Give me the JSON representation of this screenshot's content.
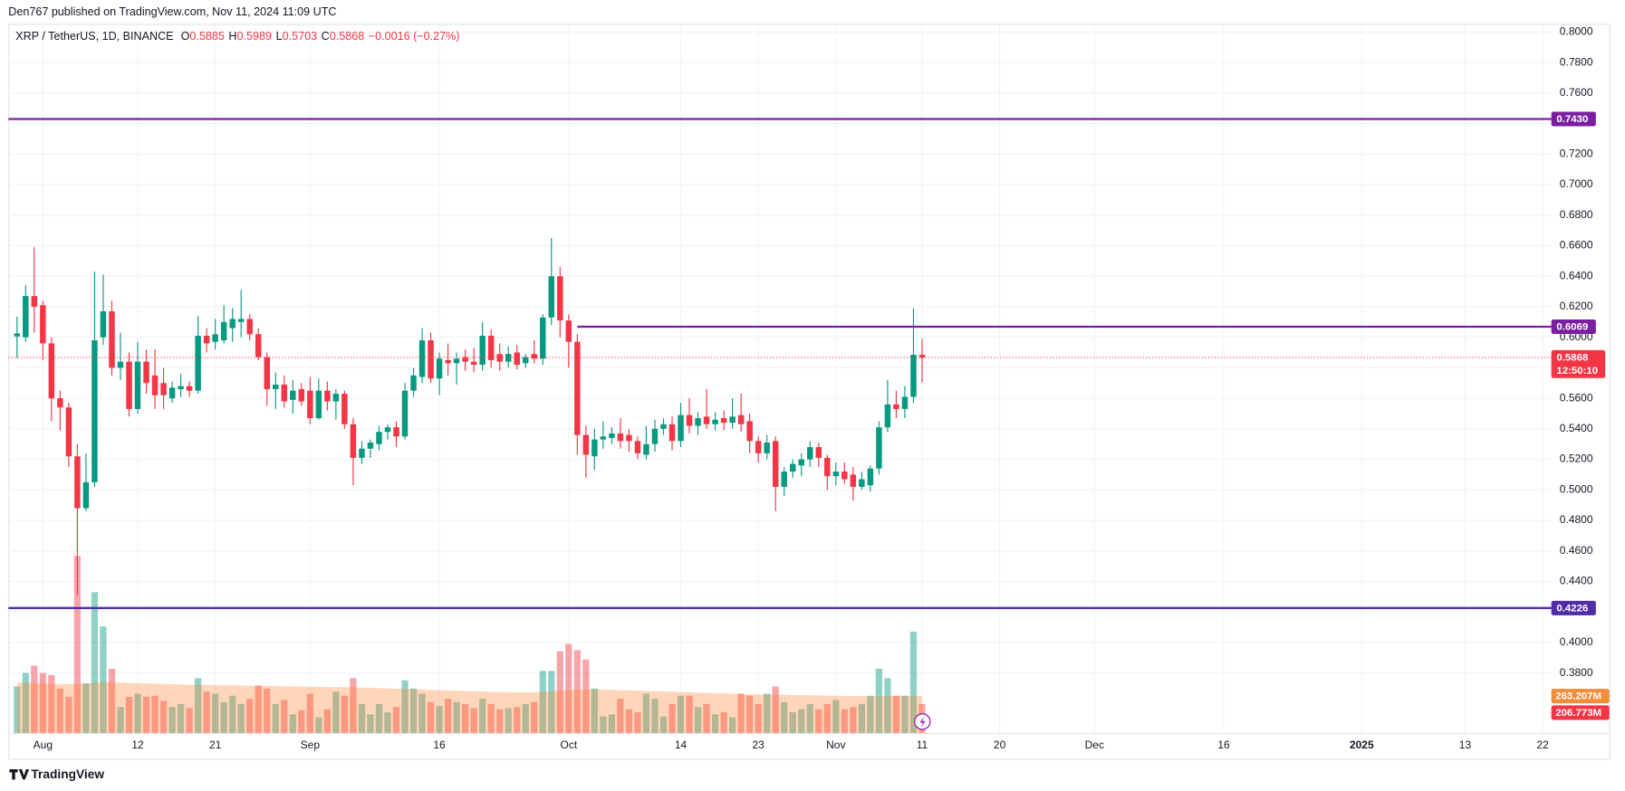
{
  "published": "Den767 published on TradingView.com, Nov 11, 2024 11:09 UTC",
  "footer": "TradingView",
  "chart_data": {
    "type": "candlestick",
    "title": "XRP / TetherUS, 1D, BINANCE",
    "ohlc_labels": [
      "O",
      "H",
      "L",
      "C"
    ],
    "change": "−0.0016 (−0.27%)",
    "countdown": "12:50:10",
    "up_color": "#089981",
    "down_color": "#f23645",
    "volume_ma_color": "#ff7f27",
    "x": [
      "2024-07-29",
      "2024-07-30",
      "2024-07-31",
      "2024-08-01",
      "2024-08-02",
      "2024-08-03",
      "2024-08-04",
      "2024-08-05",
      "2024-08-06",
      "2024-08-07",
      "2024-08-08",
      "2024-08-09",
      "2024-08-10",
      "2024-08-11",
      "2024-08-12",
      "2024-08-13",
      "2024-08-14",
      "2024-08-15",
      "2024-08-16",
      "2024-08-17",
      "2024-08-18",
      "2024-08-19",
      "2024-08-20",
      "2024-08-21",
      "2024-08-22",
      "2024-08-23",
      "2024-08-24",
      "2024-08-25",
      "2024-08-26",
      "2024-08-27",
      "2024-08-28",
      "2024-08-29",
      "2024-08-30",
      "2024-08-31",
      "2024-09-01",
      "2024-09-02",
      "2024-09-03",
      "2024-09-04",
      "2024-09-05",
      "2024-09-06",
      "2024-09-07",
      "2024-09-08",
      "2024-09-09",
      "2024-09-10",
      "2024-09-11",
      "2024-09-12",
      "2024-09-13",
      "2024-09-14",
      "2024-09-15",
      "2024-09-16",
      "2024-09-17",
      "2024-09-18",
      "2024-09-19",
      "2024-09-20",
      "2024-09-21",
      "2024-09-22",
      "2024-09-23",
      "2024-09-24",
      "2024-09-25",
      "2024-09-26",
      "2024-09-27",
      "2024-09-28",
      "2024-09-29",
      "2024-09-30",
      "2024-10-01",
      "2024-10-02",
      "2024-10-03",
      "2024-10-04",
      "2024-10-05",
      "2024-10-06",
      "2024-10-07",
      "2024-10-08",
      "2024-10-09",
      "2024-10-10",
      "2024-10-11",
      "2024-10-12",
      "2024-10-13",
      "2024-10-14",
      "2024-10-15",
      "2024-10-16",
      "2024-10-17",
      "2024-10-18",
      "2024-10-19",
      "2024-10-20",
      "2024-10-21",
      "2024-10-22",
      "2024-10-23",
      "2024-10-24",
      "2024-10-25",
      "2024-10-26",
      "2024-10-27",
      "2024-10-28",
      "2024-10-29",
      "2024-10-30",
      "2024-10-31",
      "2024-11-01",
      "2024-11-02",
      "2024-11-03",
      "2024-11-04",
      "2024-11-05",
      "2024-11-06",
      "2024-11-07",
      "2024-11-08",
      "2024-11-09",
      "2024-11-10",
      "2024-11-11"
    ],
    "open": [
      0.6005,
      0.6,
      0.627,
      0.621,
      0.596,
      0.56,
      0.554,
      0.522,
      0.488,
      0.505,
      0.6,
      0.617,
      0.58,
      0.584,
      0.553,
      0.584,
      0.575,
      0.57,
      0.56,
      0.566,
      0.568,
      0.565,
      0.601,
      0.597,
      0.598,
      0.606,
      0.61,
      0.612,
      0.602,
      0.587,
      0.566,
      0.569,
      0.559,
      0.566,
      0.565,
      0.547,
      0.565,
      0.558,
      0.563,
      0.543,
      0.521,
      0.527,
      0.53,
      0.538,
      0.541,
      0.535,
      0.565,
      0.574,
      0.598,
      0.573,
      0.585,
      0.583,
      0.587,
      0.584,
      0.582,
      0.601,
      0.589,
      0.584,
      0.59,
      0.583,
      0.589,
      0.586,
      0.613,
      0.64,
      0.611,
      0.597,
      0.536,
      0.522,
      0.533,
      0.534,
      0.537,
      0.536,
      0.532,
      0.523,
      0.53,
      0.54,
      0.543,
      0.532,
      0.549,
      0.542,
      0.548,
      0.543,
      0.547,
      0.544,
      0.549,
      0.545,
      0.532,
      0.524,
      0.532,
      0.502,
      0.512,
      0.516,
      0.52,
      0.528,
      0.521,
      0.509,
      0.512,
      0.51,
      0.502,
      0.503,
      0.514,
      0.541,
      0.556,
      0.553,
      0.561,
      0.5885
    ],
    "high": [
      0.6135,
      0.634,
      0.659,
      0.624,
      0.6,
      0.565,
      0.557,
      0.53,
      0.524,
      0.643,
      0.641,
      0.624,
      0.603,
      0.59,
      0.597,
      0.592,
      0.592,
      0.58,
      0.571,
      0.576,
      0.571,
      0.614,
      0.606,
      0.612,
      0.621,
      0.619,
      0.631,
      0.615,
      0.606,
      0.59,
      0.577,
      0.575,
      0.572,
      0.57,
      0.574,
      0.573,
      0.571,
      0.566,
      0.565,
      0.547,
      0.532,
      0.533,
      0.542,
      0.543,
      0.545,
      0.57,
      0.58,
      0.606,
      0.603,
      0.59,
      0.596,
      0.59,
      0.592,
      0.593,
      0.61,
      0.605,
      0.596,
      0.594,
      0.595,
      0.589,
      0.598,
      0.615,
      0.665,
      0.646,
      0.615,
      0.602,
      0.542,
      0.54,
      0.545,
      0.541,
      0.547,
      0.54,
      0.535,
      0.542,
      0.546,
      0.547,
      0.548,
      0.557,
      0.56,
      0.551,
      0.566,
      0.551,
      0.552,
      0.56,
      0.563,
      0.55,
      0.535,
      0.536,
      0.535,
      0.515,
      0.52,
      0.524,
      0.532,
      0.531,
      0.523,
      0.518,
      0.518,
      0.515,
      0.512,
      0.516,
      0.545,
      0.572,
      0.565,
      0.568,
      0.6188,
      0.5989
    ],
    "low": [
      0.5865,
      0.597,
      0.603,
      0.585,
      0.545,
      0.539,
      0.515,
      0.431,
      0.486,
      0.502,
      0.595,
      0.575,
      0.572,
      0.548,
      0.55,
      0.563,
      0.553,
      0.553,
      0.557,
      0.561,
      0.561,
      0.563,
      0.59,
      0.592,
      0.596,
      0.597,
      0.6,
      0.598,
      0.585,
      0.555,
      0.553,
      0.554,
      0.55,
      0.555,
      0.543,
      0.546,
      0.552,
      0.546,
      0.54,
      0.503,
      0.517,
      0.521,
      0.526,
      0.533,
      0.528,
      0.533,
      0.561,
      0.57,
      0.57,
      0.562,
      0.575,
      0.569,
      0.578,
      0.577,
      0.578,
      0.58,
      0.578,
      0.58,
      0.579,
      0.58,
      0.583,
      0.582,
      0.608,
      0.6,
      0.58,
      0.523,
      0.508,
      0.513,
      0.527,
      0.53,
      0.527,
      0.525,
      0.52,
      0.52,
      0.525,
      0.536,
      0.526,
      0.528,
      0.537,
      0.536,
      0.54,
      0.539,
      0.539,
      0.54,
      0.538,
      0.524,
      0.518,
      0.52,
      0.486,
      0.496,
      0.508,
      0.509,
      0.515,
      0.515,
      0.5,
      0.503,
      0.504,
      0.493,
      0.5,
      0.499,
      0.51,
      0.538,
      0.547,
      0.547,
      0.557,
      0.5703
    ],
    "close": [
      0.6025,
      0.627,
      0.62,
      0.596,
      0.56,
      0.554,
      0.522,
      0.488,
      0.505,
      0.598,
      0.617,
      0.58,
      0.584,
      0.553,
      0.584,
      0.57,
      0.562,
      0.562,
      0.567,
      0.568,
      0.565,
      0.601,
      0.596,
      0.602,
      0.61,
      0.612,
      0.612,
      0.602,
      0.587,
      0.566,
      0.569,
      0.558,
      0.565,
      0.558,
      0.547,
      0.565,
      0.558,
      0.563,
      0.543,
      0.521,
      0.527,
      0.531,
      0.538,
      0.541,
      0.535,
      0.565,
      0.575,
      0.598,
      0.573,
      0.586,
      0.583,
      0.586,
      0.584,
      0.582,
      0.601,
      0.585,
      0.584,
      0.589,
      0.582,
      0.587,
      0.586,
      0.613,
      0.64,
      0.611,
      0.597,
      0.536,
      0.523,
      0.533,
      0.535,
      0.537,
      0.532,
      0.532,
      0.524,
      0.53,
      0.54,
      0.543,
      0.532,
      0.549,
      0.542,
      0.547,
      0.543,
      0.546,
      0.544,
      0.548,
      0.543,
      0.532,
      0.524,
      0.531,
      0.502,
      0.512,
      0.517,
      0.52,
      0.528,
      0.521,
      0.509,
      0.512,
      0.507,
      0.502,
      0.507,
      0.514,
      0.541,
      0.556,
      0.553,
      0.561,
      0.5885,
      0.5868
    ],
    "volume": [
      332,
      428,
      480,
      428,
      413,
      317,
      258,
      1262,
      354,
      1004,
      760,
      458,
      185,
      258,
      280,
      258,
      266,
      229,
      185,
      207,
      177,
      391,
      295,
      280,
      221,
      266,
      207,
      244,
      339,
      317,
      207,
      236,
      133,
      162,
      280,
      111,
      170,
      295,
      266,
      391,
      207,
      133,
      207,
      148,
      185,
      376,
      317,
      280,
      221,
      192,
      244,
      221,
      207,
      177,
      244,
      207,
      170,
      177,
      185,
      207,
      221,
      443,
      443,
      583,
      635,
      590,
      524,
      317,
      118,
      133,
      244,
      170,
      148,
      280,
      244,
      118,
      207,
      266,
      266,
      185,
      207,
      133,
      148,
      111,
      280,
      266,
      207,
      280,
      332,
      221,
      148,
      170,
      207,
      170,
      207,
      236,
      170,
      185,
      207,
      266,
      458,
      391,
      266,
      266,
      723,
      206.773
    ],
    "volume_ma": [
      360,
      358,
      356,
      354,
      352,
      350,
      348,
      352,
      352,
      358,
      362,
      362,
      360,
      358,
      356,
      354,
      352,
      350,
      348,
      346,
      344,
      343,
      342,
      341,
      340,
      339,
      338,
      337,
      336,
      335,
      334,
      333,
      332,
      331,
      330,
      329,
      328,
      327,
      326,
      325,
      324,
      322,
      320,
      318,
      316,
      314,
      312,
      310,
      308,
      306,
      304,
      302,
      300,
      298,
      296,
      294,
      292,
      290,
      290,
      290,
      290,
      294,
      298,
      302,
      306,
      310,
      312,
      312,
      310,
      308,
      306,
      304,
      302,
      300,
      298,
      296,
      294,
      292,
      290,
      288,
      286,
      284,
      282,
      280,
      278,
      276,
      275,
      274,
      273,
      272,
      271,
      270,
      269,
      268,
      267,
      266,
      265,
      264,
      263,
      262,
      262,
      263,
      263,
      263,
      264,
      263.207
    ],
    "volume_ylim": [
      0,
      5048
    ],
    "volume_tags": [
      {
        "value": 263.207,
        "label": "263.207M",
        "color": "#f28c38"
      },
      {
        "value": 206.773,
        "label": "206.773M",
        "color": "#f23645"
      }
    ],
    "ylim": [
      0.3407,
      0.8047
    ],
    "yticks": [
      {
        "value": 0.38,
        "label": "0.3800"
      },
      {
        "value": 0.4,
        "label": "0.4000"
      },
      {
        "value": 0.42,
        "label": "0.4200"
      },
      {
        "value": 0.44,
        "label": "0.4400"
      },
      {
        "value": 0.46,
        "label": "0.4600"
      },
      {
        "value": 0.48,
        "label": "0.4800"
      },
      {
        "value": 0.5,
        "label": "0.5000"
      },
      {
        "value": 0.52,
        "label": "0.5200"
      },
      {
        "value": 0.54,
        "label": "0.5400"
      },
      {
        "value": 0.56,
        "label": "0.5600"
      },
      {
        "value": 0.58,
        "label": "0.5800"
      },
      {
        "value": 0.6,
        "label": "0.6000"
      },
      {
        "value": 0.62,
        "label": "0.6200"
      },
      {
        "value": 0.64,
        "label": "0.6400"
      },
      {
        "value": 0.66,
        "label": "0.6600"
      },
      {
        "value": 0.68,
        "label": "0.6800"
      },
      {
        "value": 0.7,
        "label": "0.7000"
      },
      {
        "value": 0.72,
        "label": "0.7200"
      },
      {
        "value": 0.74,
        "label": "0.7400"
      },
      {
        "value": 0.76,
        "label": "0.7600"
      },
      {
        "value": 0.78,
        "label": "0.7800"
      },
      {
        "value": 0.8,
        "label": "0.8000"
      }
    ],
    "xlim": [
      "2024-07-28",
      "2025-01-23"
    ],
    "xticks": [
      {
        "value": "2024-08-01",
        "label": "Aug"
      },
      {
        "value": "2024-08-12",
        "label": "12"
      },
      {
        "value": "2024-08-21",
        "label": "21"
      },
      {
        "value": "2024-09-01",
        "label": "Sep"
      },
      {
        "value": "2024-09-16",
        "label": "16"
      },
      {
        "value": "2024-10-01",
        "label": "Oct"
      },
      {
        "value": "2024-10-14",
        "label": "14"
      },
      {
        "value": "2024-10-23",
        "label": "23"
      },
      {
        "value": "2024-11-01",
        "label": "Nov"
      },
      {
        "value": "2024-11-11",
        "label": "11"
      },
      {
        "value": "2024-11-20",
        "label": "20"
      },
      {
        "value": "2024-12-01",
        "label": "Dec"
      },
      {
        "value": "2024-12-16",
        "label": "16"
      },
      {
        "value": "2025-01-01",
        "label": "2025",
        "bold": true
      },
      {
        "value": "2025-01-13",
        "label": "13"
      },
      {
        "value": "2025-01-22",
        "label": "22"
      }
    ],
    "grid": true,
    "levels": [
      {
        "value": 0.743,
        "label": "0.7430",
        "color": "#7b1fa2"
      },
      {
        "value": 0.6069,
        "label": "0.6069",
        "color": "#7b1fa2",
        "start": "2024-10-02"
      },
      {
        "value": 0.4226,
        "label": "0.4226",
        "color": "#512da8"
      }
    ]
  }
}
